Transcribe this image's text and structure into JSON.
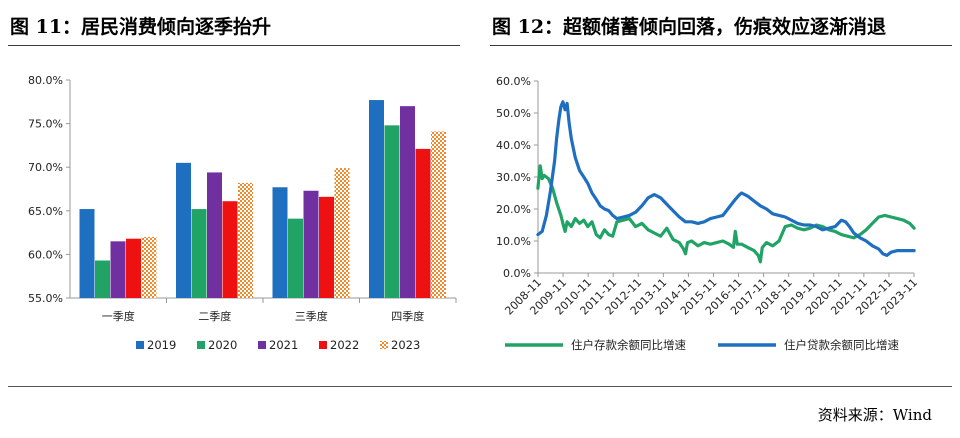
{
  "header": {
    "left_title": "图 11：居民消费倾向逐季抬升",
    "right_title": "图 12：超额储蓄倾向回落，伤痕效应逐渐消退"
  },
  "footer": {
    "source": "资料来源：Wind"
  },
  "chart_data": [
    {
      "type": "bar",
      "title": "图 11：居民消费倾向逐季抬升",
      "categories": [
        "一季度",
        "二季度",
        "三季度",
        "四季度"
      ],
      "ylim": [
        55,
        80
      ],
      "yticks": [
        55,
        60,
        65,
        70,
        75,
        80
      ],
      "ytick_labels": [
        "55.0%",
        "60.0%",
        "65.0%",
        "70.0%",
        "75.0%",
        "80.0%"
      ],
      "legend_position": "bottom",
      "series": [
        {
          "name": "2019",
          "color": "#1f6fc0",
          "pattern": "solid",
          "values": [
            65.2,
            70.5,
            67.7,
            77.7
          ]
        },
        {
          "name": "2020",
          "color": "#21a366",
          "pattern": "solid",
          "values": [
            59.3,
            65.2,
            64.1,
            74.8
          ]
        },
        {
          "name": "2021",
          "color": "#7030a0",
          "pattern": "solid",
          "values": [
            61.5,
            69.4,
            67.3,
            77.0
          ]
        },
        {
          "name": "2022",
          "color": "#ee1111",
          "pattern": "solid",
          "values": [
            61.8,
            66.1,
            66.6,
            72.1
          ]
        },
        {
          "name": "2023",
          "color": "#f08a2c",
          "pattern": "checker",
          "values": [
            62.0,
            68.2,
            69.9,
            74.1
          ]
        }
      ]
    },
    {
      "type": "line",
      "title": "图 12：超额储蓄倾向回落，伤痕效应逐渐消退",
      "ylim": [
        0,
        60
      ],
      "yticks": [
        0,
        10,
        20,
        30,
        40,
        50,
        60
      ],
      "ytick_labels": [
        "0.0%",
        "10.0%",
        "20.0%",
        "30.0%",
        "40.0%",
        "50.0%",
        "60.0%"
      ],
      "xlim": [
        2008.833,
        2023.917
      ],
      "xtick_labels": [
        "2008-11",
        "2009-11",
        "2010-11",
        "2011-11",
        "2012-11",
        "2013-11",
        "2014-11",
        "2015-11",
        "2016-11",
        "2017-11",
        "2018-11",
        "2019-11",
        "2020-11",
        "2021-11",
        "2022-11",
        "2023-11"
      ],
      "legend_position": "bottom",
      "series": [
        {
          "name": "住户存款余额同比增速",
          "color": "#21a366",
          "x": [
            2008.83,
            2008.92,
            2009.0,
            2009.08,
            2009.25,
            2009.42,
            2009.58,
            2009.75,
            2009.83,
            2009.92,
            2010.0,
            2010.17,
            2010.33,
            2010.5,
            2010.67,
            2010.83,
            2011.0,
            2011.17,
            2011.33,
            2011.5,
            2011.67,
            2011.83,
            2012.0,
            2012.25,
            2012.5,
            2012.75,
            2013.0,
            2013.25,
            2013.5,
            2013.75,
            2014.0,
            2014.25,
            2014.5,
            2014.67,
            2014.75,
            2014.83,
            2015.0,
            2015.25,
            2015.5,
            2015.75,
            2016.0,
            2016.25,
            2016.5,
            2016.67,
            2016.75,
            2016.83,
            2017.0,
            2017.25,
            2017.5,
            2017.67,
            2017.75,
            2017.83,
            2018.0,
            2018.25,
            2018.5,
            2018.75,
            2019.0,
            2019.25,
            2019.5,
            2019.75,
            2020.0,
            2020.25,
            2020.5,
            2020.75,
            2021.0,
            2021.25,
            2021.5,
            2021.75,
            2022.0,
            2022.25,
            2022.5,
            2022.75,
            2023.0,
            2023.25,
            2023.5,
            2023.75,
            2023.92
          ],
          "y": [
            26.5,
            33.5,
            29.5,
            30.5,
            29.5,
            26.5,
            22.0,
            18.0,
            15.5,
            13.0,
            16.0,
            14.5,
            17.0,
            15.5,
            16.5,
            14.5,
            16.0,
            12.0,
            11.0,
            13.5,
            12.0,
            11.5,
            16.0,
            16.5,
            17.0,
            14.5,
            15.5,
            13.5,
            12.5,
            11.5,
            14.0,
            10.5,
            9.5,
            7.5,
            6.0,
            9.5,
            10.0,
            8.5,
            9.5,
            9.0,
            9.5,
            10.0,
            9.0,
            8.0,
            13.0,
            9.0,
            9.0,
            8.0,
            7.0,
            5.5,
            3.5,
            8.0,
            9.5,
            8.5,
            10.0,
            14.5,
            15.0,
            14.0,
            13.5,
            14.0,
            15.0,
            14.5,
            13.5,
            13.0,
            12.0,
            11.5,
            11.0,
            12.0,
            13.5,
            15.5,
            17.5,
            18.0,
            17.5,
            17.0,
            16.5,
            15.5,
            14.0
          ]
        },
        {
          "name": "住户贷款余额同比增速",
          "color": "#1f6fc0",
          "x": [
            2008.83,
            2009.0,
            2009.17,
            2009.33,
            2009.5,
            2009.58,
            2009.67,
            2009.75,
            2009.83,
            2009.92,
            2010.0,
            2010.08,
            2010.17,
            2010.33,
            2010.5,
            2010.67,
            2010.83,
            2011.0,
            2011.17,
            2011.33,
            2011.5,
            2011.67,
            2011.83,
            2012.0,
            2012.25,
            2012.5,
            2012.75,
            2013.0,
            2013.25,
            2013.5,
            2013.75,
            2014.0,
            2014.25,
            2014.5,
            2014.75,
            2015.0,
            2015.25,
            2015.5,
            2015.75,
            2016.0,
            2016.25,
            2016.5,
            2016.75,
            2016.92,
            2017.0,
            2017.25,
            2017.5,
            2017.75,
            2018.0,
            2018.25,
            2018.5,
            2018.75,
            2019.0,
            2019.25,
            2019.5,
            2019.75,
            2020.0,
            2020.25,
            2020.5,
            2020.75,
            2021.0,
            2021.17,
            2021.33,
            2021.5,
            2021.75,
            2022.0,
            2022.25,
            2022.5,
            2022.67,
            2022.83,
            2023.0,
            2023.25,
            2023.5,
            2023.75,
            2023.92
          ],
          "y": [
            12.0,
            13.0,
            18.0,
            25.5,
            35.0,
            42.0,
            48.0,
            52.0,
            53.5,
            51.0,
            53.0,
            47.0,
            42.0,
            36.0,
            32.0,
            30.0,
            28.0,
            25.0,
            23.0,
            21.0,
            20.0,
            19.5,
            18.0,
            17.0,
            17.5,
            18.0,
            19.0,
            21.0,
            23.5,
            24.5,
            23.5,
            21.5,
            19.5,
            17.5,
            16.0,
            16.0,
            15.5,
            16.0,
            17.0,
            17.5,
            18.0,
            20.5,
            23.0,
            24.5,
            25.0,
            24.0,
            22.5,
            21.0,
            20.0,
            18.5,
            18.0,
            17.5,
            16.5,
            15.5,
            15.0,
            15.0,
            14.5,
            13.5,
            14.0,
            14.5,
            16.5,
            16.0,
            14.5,
            12.5,
            11.0,
            10.0,
            8.5,
            7.5,
            6.0,
            5.5,
            6.5,
            7.0,
            7.0,
            7.0,
            7.0
          ]
        }
      ]
    }
  ]
}
